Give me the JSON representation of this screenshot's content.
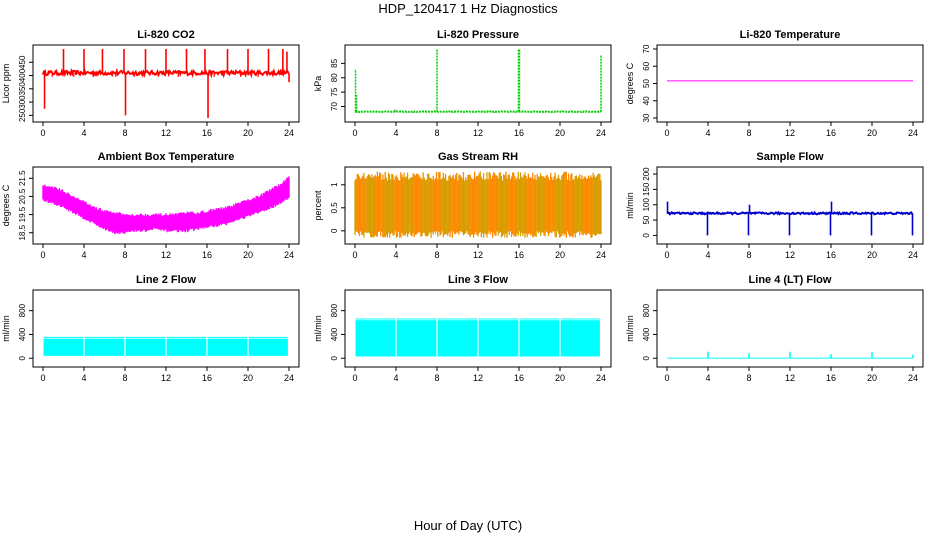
{
  "title": "HDP_120417  1 Hz Diagnostics",
  "xlabel": "Hour of Day (UTC)",
  "chart_data": [
    {
      "type": "line",
      "title": "Li-820 CO2",
      "ylabel": "Licor ppm",
      "color": "#ff0000",
      "xlim": [
        0,
        24
      ],
      "ylim": [
        240,
        500
      ],
      "xticks": [
        0,
        4,
        8,
        12,
        16,
        20,
        24
      ],
      "yticks": [
        250,
        300,
        350,
        400,
        450
      ],
      "baseline": 410,
      "noise": 8,
      "events": [
        [
          0.15,
          275
        ],
        [
          2,
          500
        ],
        [
          4,
          500
        ],
        [
          5.8,
          500
        ],
        [
          7.9,
          500
        ],
        [
          8.05,
          250
        ],
        [
          10,
          500
        ],
        [
          12,
          500
        ],
        [
          14,
          500
        ],
        [
          15.8,
          500
        ],
        [
          16.1,
          240
        ],
        [
          18,
          500
        ],
        [
          20,
          500
        ],
        [
          22,
          500
        ],
        [
          23.4,
          500
        ],
        [
          23.8,
          490
        ],
        [
          24,
          375
        ]
      ],
      "dips": [
        [
          0.9,
          395
        ],
        [
          1.5,
          400
        ],
        [
          3.0,
          395
        ],
        [
          4.9,
          395
        ],
        [
          6.2,
          400
        ],
        [
          7.1,
          395
        ],
        [
          8.9,
          395
        ],
        [
          9.4,
          400
        ],
        [
          11,
          400
        ],
        [
          13.2,
          395
        ],
        [
          15,
          400
        ],
        [
          16.7,
          395
        ],
        [
          17.5,
          400
        ],
        [
          19.3,
          395
        ],
        [
          21,
          395
        ],
        [
          22.8,
          400
        ]
      ]
    },
    {
      "type": "line",
      "title": "Li-820 Pressure",
      "ylabel": "kPa",
      "color": "#00cc00",
      "xlim": [
        0,
        24
      ],
      "ylim": [
        66,
        90
      ],
      "xticks": [
        0,
        4,
        8,
        12,
        16,
        20,
        24
      ],
      "yticks": [
        70,
        75,
        80,
        85
      ],
      "baseline": 68.2,
      "noise": 0.1,
      "events": [
        [
          0.05,
          83
        ],
        [
          0.15,
          74
        ],
        [
          3.9,
          69
        ],
        [
          8,
          90
        ],
        [
          15.95,
          90
        ],
        [
          16.05,
          90
        ],
        [
          24,
          88
        ]
      ]
    },
    {
      "type": "line",
      "title": "Li-820 Temperature",
      "ylabel": "degrees C",
      "color": "#ff00ff",
      "xlim": [
        0,
        24
      ],
      "ylim": [
        30,
        70
      ],
      "xticks": [
        0,
        4,
        8,
        12,
        16,
        20,
        24
      ],
      "yticks": [
        30,
        40,
        50,
        60,
        70
      ],
      "baseline": 51.5,
      "noise": 0,
      "events": []
    },
    {
      "type": "area",
      "title": "Ambient Box Temperature",
      "ylabel": "degrees C",
      "color": "#ff00ff",
      "xlim": [
        0,
        24
      ],
      "ylim": [
        18.1,
        21.9
      ],
      "xticks": [
        0,
        4,
        8,
        12,
        16,
        20,
        24
      ],
      "yticks": [
        18.5,
        19.5,
        20.5,
        21.5
      ],
      "x": [
        0,
        1,
        2,
        3,
        4,
        5,
        6,
        7,
        8,
        9,
        10,
        11,
        12,
        13,
        14,
        15,
        16,
        17,
        18,
        19,
        20,
        21,
        22,
        23,
        24
      ],
      "upper": [
        21.1,
        21.0,
        20.8,
        20.5,
        20.2,
        19.9,
        19.7,
        19.6,
        19.5,
        19.5,
        19.5,
        19.5,
        19.5,
        19.5,
        19.6,
        19.6,
        19.7,
        19.8,
        19.9,
        20.1,
        20.3,
        20.5,
        20.8,
        21.1,
        21.6
      ],
      "lower": [
        20.3,
        20.1,
        19.9,
        19.6,
        19.3,
        19.0,
        18.7,
        18.5,
        18.5,
        18.6,
        18.6,
        18.7,
        18.6,
        18.6,
        18.6,
        18.7,
        18.8,
        18.9,
        19.0,
        19.2,
        19.4,
        19.6,
        19.8,
        20.1,
        20.4
      ]
    },
    {
      "type": "area",
      "title": "Gas Stream RH",
      "ylabel": "percent",
      "color": "#ff8800",
      "color2": "#d4a000",
      "xlim": [
        0,
        24
      ],
      "ylim": [
        -0.2,
        1.3
      ],
      "xticks": [
        0,
        4,
        8,
        12,
        16,
        20,
        24
      ],
      "yticks": [
        0.0,
        0.5,
        1.0
      ],
      "x": [
        0,
        24
      ],
      "upper": [
        1.15,
        1.15
      ],
      "lower": [
        -0.05,
        -0.05
      ],
      "dense": true
    },
    {
      "type": "line",
      "title": "Sample Flow",
      "ylabel": "ml/min",
      "color": "#0000cc",
      "xlim": [
        0,
        24
      ],
      "ylim": [
        -15,
        210
      ],
      "xticks": [
        0,
        4,
        8,
        12,
        16,
        20,
        24
      ],
      "yticks": [
        0,
        50,
        100,
        150,
        200
      ],
      "baseline": 72,
      "noise": 3,
      "events": [
        [
          0.05,
          110
        ],
        [
          3.95,
          0
        ],
        [
          7.95,
          0
        ],
        [
          8.05,
          100
        ],
        [
          11.95,
          0
        ],
        [
          15.95,
          0
        ],
        [
          16.05,
          110
        ],
        [
          19.95,
          0
        ],
        [
          23.95,
          0
        ]
      ]
    },
    {
      "type": "area",
      "title": "Line 2 Flow",
      "ylabel": "ml/min",
      "color": "#00ffff",
      "xlim": [
        0,
        24
      ],
      "ylim": [
        -80,
        1080
      ],
      "xticks": [
        0,
        4,
        8,
        12,
        16,
        20,
        24
      ],
      "yticks": [
        0,
        400,
        800
      ],
      "x": [
        0,
        24
      ],
      "upper": [
        330,
        330
      ],
      "lower": [
        40,
        40
      ],
      "dense": false,
      "gaps": [
        4,
        8,
        12,
        16,
        20
      ]
    },
    {
      "type": "area",
      "title": "Line 3 Flow",
      "ylabel": "ml/min",
      "color": "#00ffff",
      "xlim": [
        0,
        24
      ],
      "ylim": [
        -80,
        1080
      ],
      "xticks": [
        0,
        4,
        8,
        12,
        16,
        20,
        24
      ],
      "yticks": [
        0,
        400,
        800
      ],
      "x": [
        0,
        24
      ],
      "upper": [
        640,
        640
      ],
      "lower": [
        30,
        30
      ],
      "dense": false,
      "gaps": [
        4,
        8,
        12,
        16,
        20
      ]
    },
    {
      "type": "line",
      "title": "Line 4 (LT) Flow",
      "ylabel": "ml/min",
      "color": "#00ffff",
      "xlim": [
        0,
        24
      ],
      "ylim": [
        -80,
        1080
      ],
      "xticks": [
        0,
        4,
        8,
        12,
        16,
        20,
        24
      ],
      "yticks": [
        0,
        400,
        800
      ],
      "baseline": 3,
      "noise": 0,
      "events": [
        [
          4,
          110
        ],
        [
          8,
          90
        ],
        [
          12,
          110
        ],
        [
          16,
          70
        ],
        [
          20,
          110
        ],
        [
          24,
          60
        ]
      ]
    }
  ]
}
